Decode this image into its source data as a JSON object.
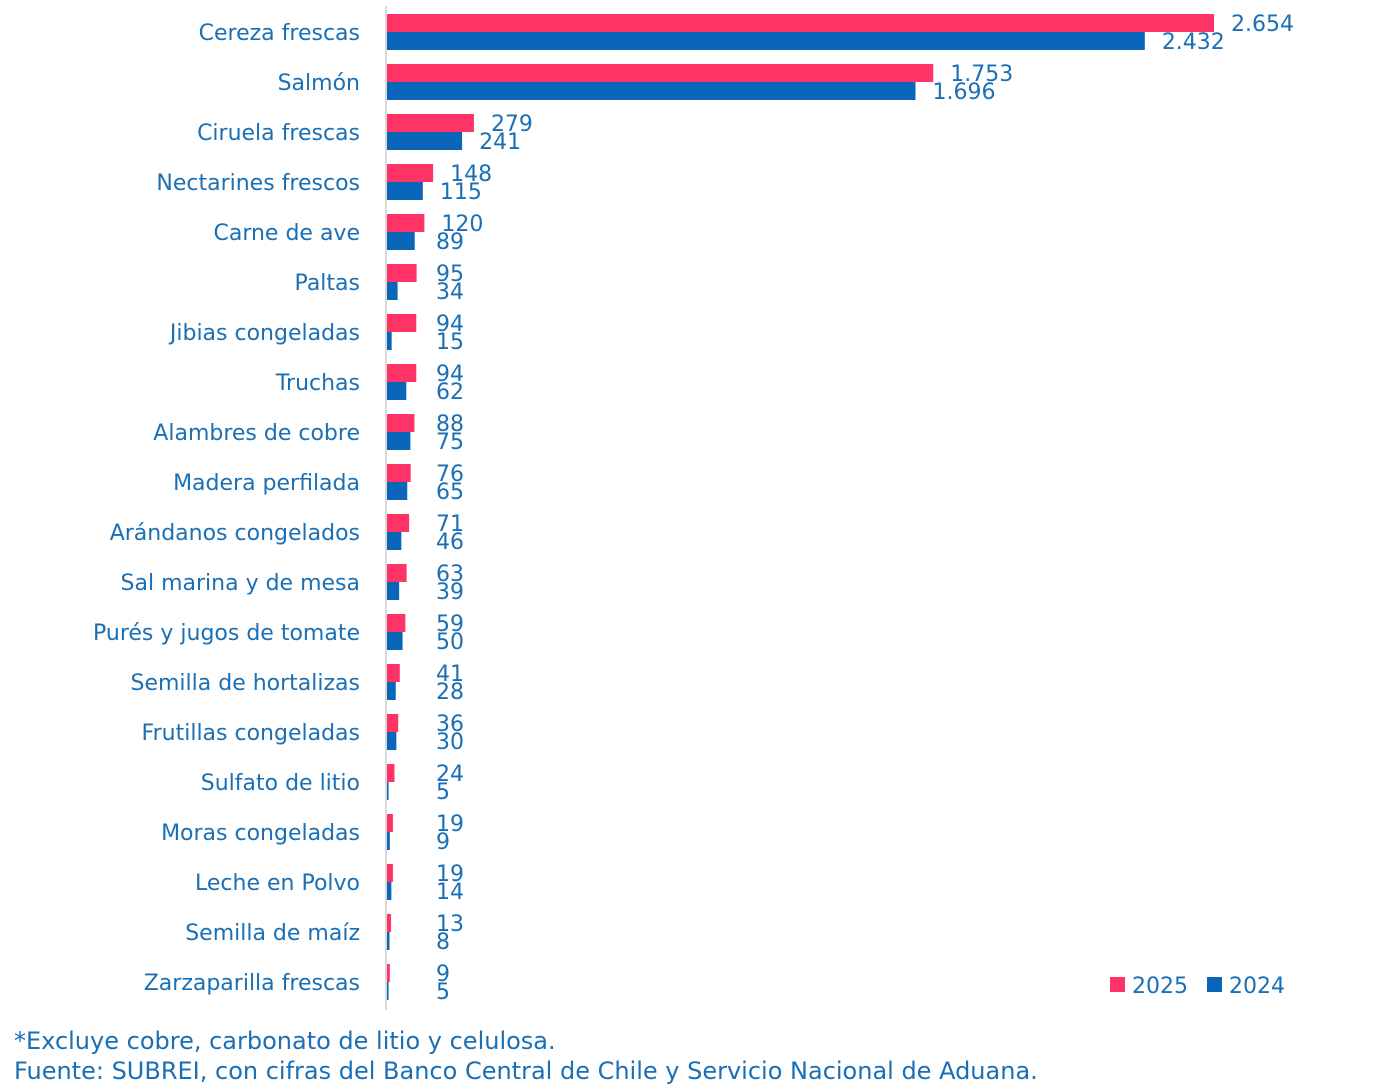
{
  "chart_data": {
    "type": "bar",
    "orientation": "horizontal",
    "categories": [
      "Cereza frescas",
      "Salmón",
      "Ciruela frescas",
      "Nectarines frescos",
      "Carne de ave",
      "Paltas",
      "Jibias congeladas",
      "Truchas",
      "Alambres de cobre",
      "Madera perfilada",
      "Arándanos congelados",
      "Sal marina y de mesa",
      "Purés y jugos de tomate",
      "Semilla de hortalizas",
      "Frutillas congeladas",
      "Sulfato de litio",
      "Moras congeladas",
      "Leche en Polvo",
      "Semilla de maíz",
      "Zarzaparilla frescas"
    ],
    "series": [
      {
        "name": "2025",
        "color": "#ff3366",
        "values": [
          2654,
          1753,
          279,
          148,
          120,
          95,
          94,
          94,
          88,
          76,
          71,
          63,
          59,
          41,
          36,
          24,
          19,
          19,
          13,
          9
        ],
        "labels": [
          "2.654",
          "1.753",
          "279",
          "148",
          "120",
          "95",
          "94",
          "94",
          "88",
          "76",
          "71",
          "63",
          "59",
          "41",
          "36",
          "24",
          "19",
          "19",
          "13",
          "9"
        ]
      },
      {
        "name": "2024",
        "color": "#0a66b8",
        "values": [
          2432,
          1696,
          241,
          115,
          89,
          34,
          15,
          62,
          75,
          65,
          46,
          39,
          50,
          28,
          30,
          5,
          9,
          14,
          8,
          5
        ],
        "labels": [
          "2.432",
          "1.696",
          "241",
          "115",
          "89",
          "34",
          "15",
          "62",
          "75",
          "65",
          "46",
          "39",
          "50",
          "28",
          "30",
          "5",
          "9",
          "14",
          "8",
          "5"
        ]
      }
    ],
    "xlim": [
      0,
      2654
    ],
    "grid": false,
    "legend": "bottom-right",
    "label_color": "#1a6fb5",
    "axis_color": "#d9d9d9"
  },
  "footnotes": {
    "note": "*Excluye cobre, carbonato de litio y celulosa.",
    "source": "Fuente: SUBREI, con cifras del Banco Central de Chile y Servicio Nacional de Aduana."
  }
}
